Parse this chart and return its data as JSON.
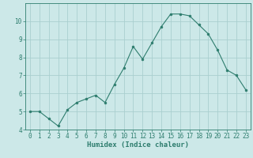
{
  "x": [
    0,
    1,
    2,
    3,
    4,
    5,
    6,
    7,
    8,
    9,
    10,
    11,
    12,
    13,
    14,
    15,
    16,
    17,
    18,
    19,
    20,
    21,
    22,
    23
  ],
  "y": [
    5.0,
    5.0,
    4.6,
    4.2,
    5.1,
    5.5,
    5.7,
    5.9,
    5.5,
    6.5,
    7.4,
    8.6,
    7.9,
    8.8,
    9.7,
    10.4,
    10.4,
    10.3,
    9.8,
    9.3,
    8.4,
    7.3,
    7.0,
    6.2
  ],
  "line_color": "#2e7d6e",
  "marker": "o",
  "marker_size": 2,
  "bg_color": "#cce8e8",
  "grid_color": "#aacfcf",
  "axis_color": "#2e7d6e",
  "xlabel": "Humidex (Indice chaleur)",
  "xlim": [
    -0.5,
    23.5
  ],
  "ylim": [
    4,
    11
  ],
  "yticks": [
    4,
    5,
    6,
    7,
    8,
    9,
    10
  ],
  "xticks": [
    0,
    1,
    2,
    3,
    4,
    5,
    6,
    7,
    8,
    9,
    10,
    11,
    12,
    13,
    14,
    15,
    16,
    17,
    18,
    19,
    20,
    21,
    22,
    23
  ],
  "xlabel_fontsize": 6.5,
  "tick_fontsize": 5.5
}
